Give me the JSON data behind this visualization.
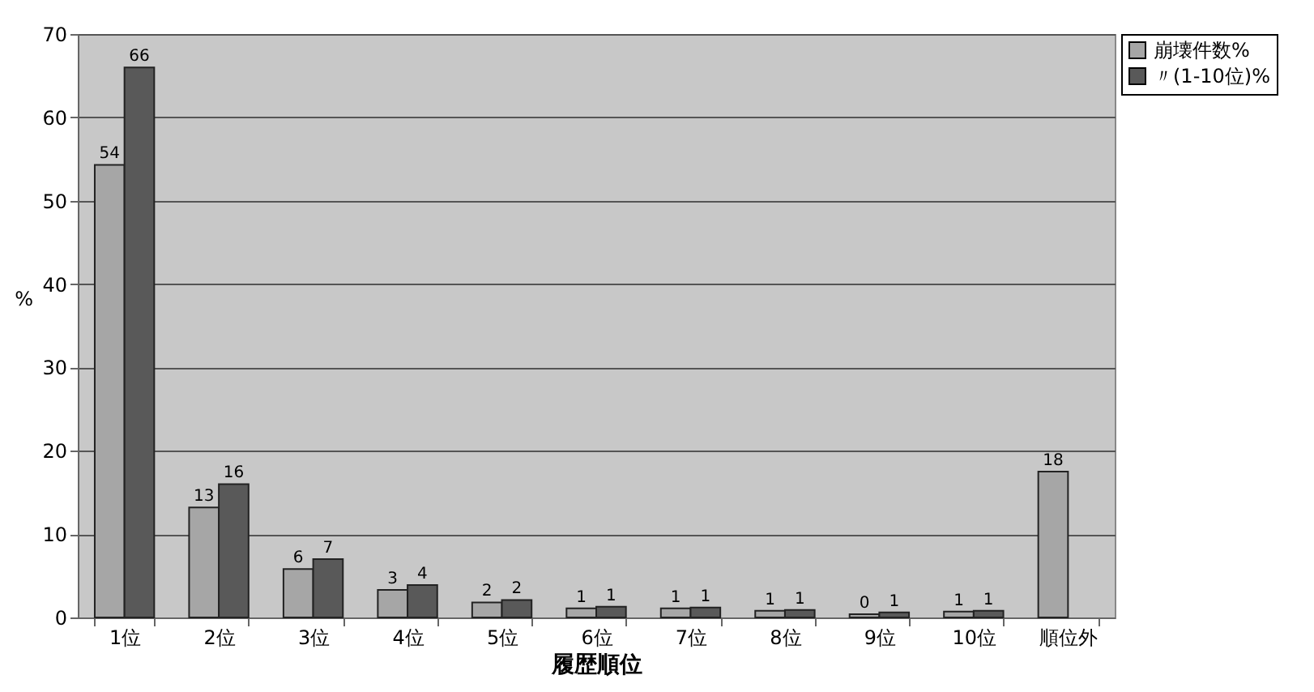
{
  "chart_data": {
    "type": "bar",
    "xlabel": "履歴順位",
    "ylabel": "%",
    "categories": [
      "1位",
      "2位",
      "3位",
      "4位",
      "5位",
      "6位",
      "7位",
      "8位",
      "9位",
      "10位",
      "順位外"
    ],
    "series": [
      {
        "name": "崩壊件数%",
        "color": "#a6a6a6",
        "values": [
          54.3,
          13.2,
          5.8,
          3.3,
          1.8,
          1.1,
          1.1,
          0.8,
          0.4,
          0.7,
          17.5
        ],
        "value_labels": [
          "54",
          "13",
          "6",
          "3",
          "2",
          "1",
          "1",
          "1",
          "0",
          "1",
          "18"
        ]
      },
      {
        "name": "〃(1-10位)%",
        "color": "#595959",
        "values": [
          66.0,
          16.0,
          7.0,
          3.9,
          2.1,
          1.3,
          1.2,
          0.9,
          0.6,
          0.8,
          null
        ],
        "value_labels": [
          "66",
          "16",
          "7",
          "4",
          "2",
          "1",
          "1",
          "1",
          "1",
          "1",
          null
        ]
      }
    ],
    "ylim": [
      0,
      70
    ],
    "yticks": [
      0,
      10,
      20,
      30,
      40,
      50,
      60,
      70
    ],
    "grid": "y",
    "legend": "right"
  }
}
